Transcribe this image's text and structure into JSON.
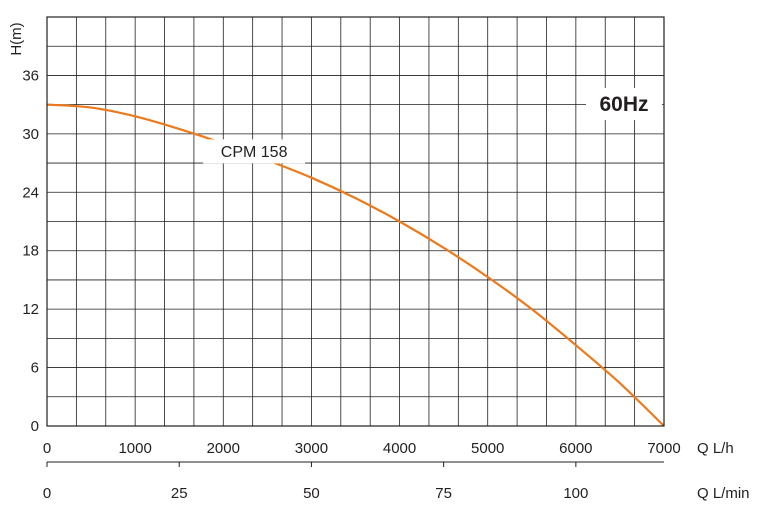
{
  "chart_data": {
    "type": "line",
    "title": "",
    "ylabel": "H(m)",
    "xlabel": "Q L/h",
    "x2label": "Q L/min",
    "xlim": [
      0,
      7000
    ],
    "ylim": [
      0,
      42
    ],
    "yticks": [
      0,
      6,
      12,
      18,
      24,
      30,
      36
    ],
    "xticks": [
      0,
      1000,
      2000,
      3000,
      4000,
      5000,
      6000,
      7000
    ],
    "x2ticks": [
      0,
      25,
      50,
      75,
      100
    ],
    "x2_factor_lh_per_lmin": 60,
    "grid": true,
    "frequency_label": "60Hz",
    "series": [
      {
        "name": "CPM 158",
        "color": "#ec7a1c",
        "x": [
          0,
          500,
          1000,
          1500,
          2000,
          2500,
          3000,
          3500,
          4000,
          4500,
          5000,
          5500,
          6000,
          6500,
          7000
        ],
        "y": [
          33,
          32.7,
          31.8,
          30.5,
          29,
          27.3,
          25.5,
          23.4,
          21,
          18.3,
          15.3,
          12,
          8.3,
          4.4,
          0
        ]
      }
    ]
  }
}
